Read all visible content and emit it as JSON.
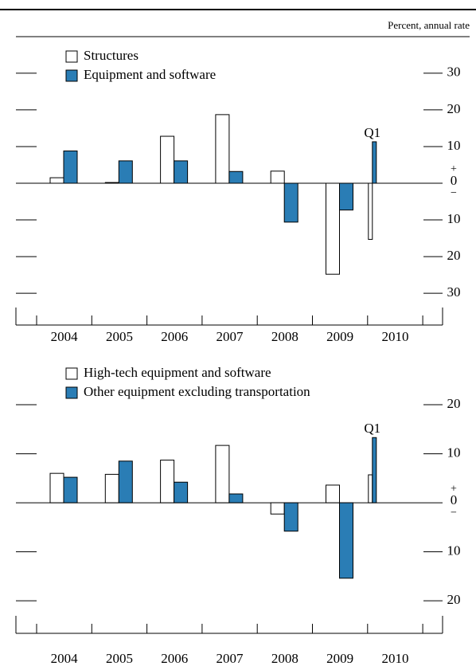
{
  "chart_data": [
    {
      "type": "bar",
      "y_label": "Percent, annual rate",
      "categories": [
        "2004",
        "2005",
        "2006",
        "2007",
        "2008",
        "2009",
        "2010"
      ],
      "series": [
        {
          "name": "Structures",
          "color": "#ffffff",
          "values": [
            1.5,
            0.2,
            12.8,
            18.7,
            3.3,
            -24.8,
            -15.3
          ]
        },
        {
          "name": "Equipment and software",
          "color": "#2a7db5",
          "values": [
            8.8,
            6.1,
            6.1,
            3.2,
            -10.6,
            -7.3,
            11.3
          ]
        }
      ],
      "annotation": "Q1",
      "ylim": [
        -38,
        38
      ],
      "yticks": [
        {
          "value": -30,
          "label": "30"
        },
        {
          "value": -20,
          "label": "20"
        },
        {
          "value": -10,
          "label": "10"
        },
        0,
        10,
        20,
        30
      ],
      "zero_signs": [
        "+",
        "−"
      ],
      "legend": "upper left"
    },
    {
      "type": "bar",
      "categories": [
        "2004",
        "2005",
        "2006",
        "2007",
        "2008",
        "2009",
        "2010"
      ],
      "series": [
        {
          "name": "High-tech equipment and software",
          "color": "#ffffff",
          "values": [
            6.0,
            5.8,
            8.7,
            11.7,
            -2.3,
            3.6,
            5.7
          ]
        },
        {
          "name": "Other equipment excluding transportation",
          "color": "#2a7db5",
          "values": [
            5.2,
            8.5,
            4.2,
            1.8,
            -5.8,
            -15.4,
            13.3
          ]
        }
      ],
      "annotation": "Q1",
      "ylim": [
        -26,
        27
      ],
      "yticks": [
        {
          "value": -20,
          "label": "20"
        },
        {
          "value": -10,
          "label": "10"
        },
        0,
        10,
        20
      ],
      "zero_signs": [
        "+",
        "−"
      ],
      "legend": "upper left"
    }
  ]
}
